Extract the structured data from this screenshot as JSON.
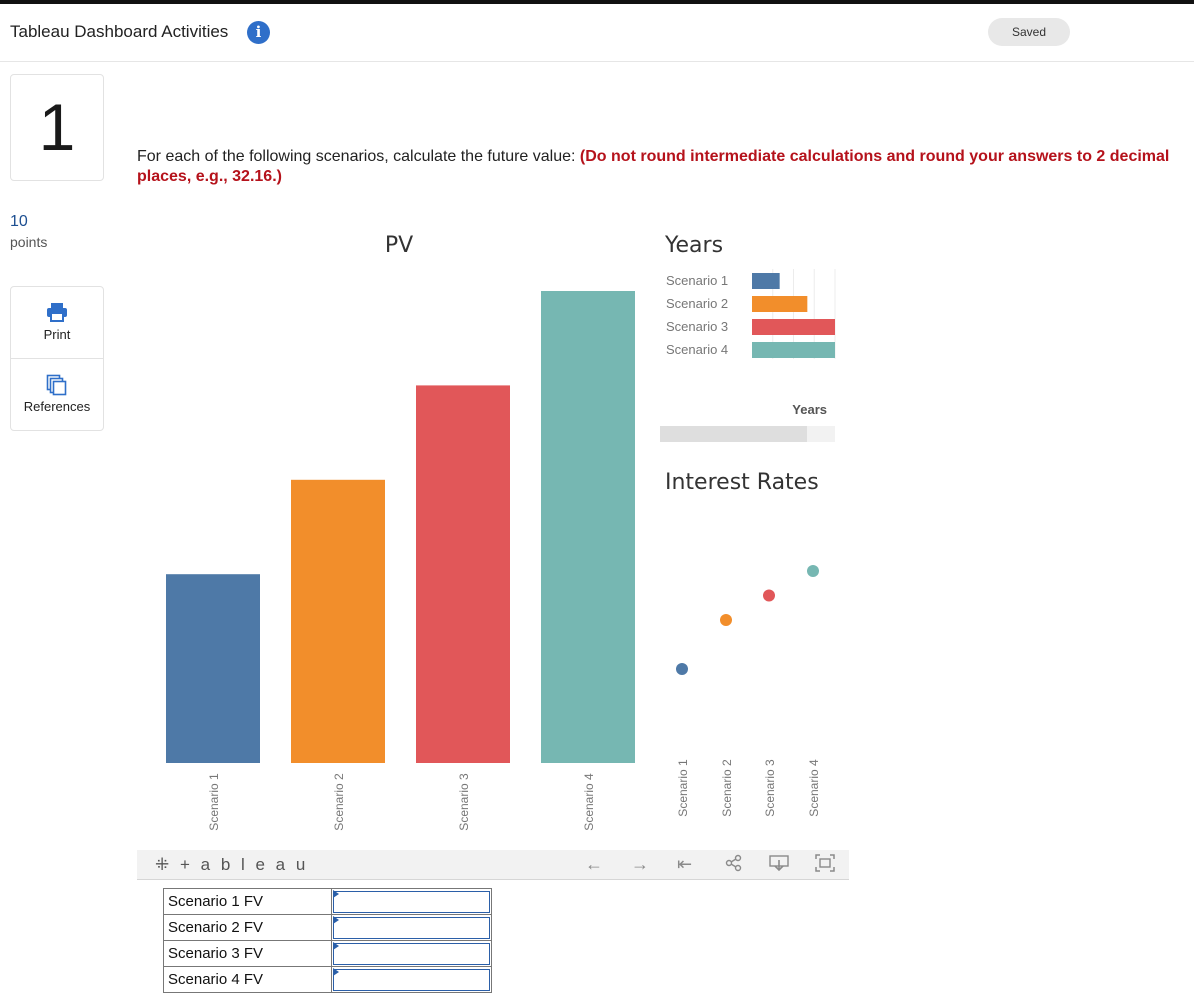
{
  "header": {
    "title": "Tableau Dashboard Activities",
    "info_icon": "info-icon",
    "status": "Saved"
  },
  "question": {
    "number": "1",
    "points_value": "10",
    "points_label": "points",
    "instruction": "For each of the following scenarios, calculate the future value: ",
    "instruction_emphasis": "(Do not round intermediate calculations and round your answers to 2 decimal places, e.g., 32.16.)"
  },
  "side_tools": [
    {
      "label": "Print",
      "icon": "printer-icon"
    },
    {
      "label": "References",
      "icon": "documents-icon"
    }
  ],
  "colors": {
    "scenario1": "#4e79a7",
    "scenario2": "#f28e2b",
    "scenario3": "#e15759",
    "scenario4": "#76b7b2",
    "accent": "#2f6fc9",
    "emphasis": "#b5121b"
  },
  "chart_data": [
    {
      "type": "bar",
      "title": "PV",
      "categories": [
        "Scenario 1",
        "Scenario 2",
        "Scenario 3",
        "Scenario 4"
      ],
      "values": [
        2,
        3,
        4,
        5
      ],
      "ylim": [
        0,
        5
      ],
      "grid": false,
      "legend": "none"
    },
    {
      "type": "bar",
      "orientation": "horizontal",
      "title": "Years",
      "categories": [
        "Scenario 1",
        "Scenario 2",
        "Scenario 3",
        "Scenario 4"
      ],
      "values": [
        1,
        2,
        3,
        3
      ],
      "xlim": [
        0,
        3
      ],
      "grid": true,
      "slider_label": "Years",
      "slider_fraction": 0.84
    },
    {
      "type": "scatter",
      "title": "Interest Rates",
      "categories": [
        "Scenario 1",
        "Scenario 2",
        "Scenario 3",
        "Scenario 4"
      ],
      "values": [
        2,
        4,
        5,
        6
      ],
      "ylim": [
        0,
        10
      ],
      "grid": false
    }
  ],
  "toolbar": {
    "logo": "+ a b l e a u",
    "icons": [
      "undo-icon",
      "redo-icon",
      "revert-icon",
      "share-icon",
      "download-icon",
      "fullscreen-icon"
    ]
  },
  "answers": {
    "rows": [
      {
        "label": "Scenario 1 FV",
        "value": ""
      },
      {
        "label": "Scenario 2 FV",
        "value": ""
      },
      {
        "label": "Scenario 3 FV",
        "value": ""
      },
      {
        "label": "Scenario 4 FV",
        "value": ""
      }
    ]
  }
}
